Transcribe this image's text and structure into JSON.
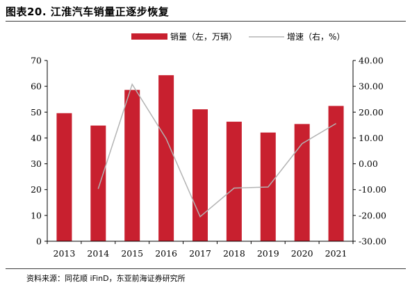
{
  "figure": {
    "title": "图表20. 江淮汽车销量正逐步恢复",
    "source": "资料来源：同花顺 iFinD，东亚前海证券研究所"
  },
  "colors": {
    "bar": "#c8202f",
    "line": "#b3b3b3",
    "axis": "#000000"
  },
  "chart_data": {
    "type": "bar",
    "categories": [
      "2013",
      "2014",
      "2015",
      "2016",
      "2017",
      "2018",
      "2019",
      "2020",
      "2021"
    ],
    "series": [
      {
        "name": "销量（左，万辆）",
        "type": "bar",
        "axis": "left",
        "values": [
          49.6,
          44.8,
          58.6,
          64.3,
          51.1,
          46.3,
          42.1,
          45.4,
          52.4
        ]
      },
      {
        "name": "增速（右，%）",
        "type": "line",
        "axis": "right",
        "values": [
          null,
          -9.7,
          30.8,
          9.7,
          -20.5,
          -9.4,
          -9.0,
          7.8,
          15.6
        ]
      }
    ],
    "y_left": {
      "lim": [
        0,
        70
      ],
      "ticks": [
        "0",
        "10",
        "20",
        "30",
        "40",
        "50",
        "60",
        "70"
      ]
    },
    "y_right": {
      "lim": [
        -30,
        40
      ],
      "ticks": [
        "-30.00",
        "-20.00",
        "-10.00",
        "0.00",
        "10.00",
        "20.00",
        "30.00",
        "40.00"
      ]
    },
    "legend": "top-center",
    "grid": false
  }
}
